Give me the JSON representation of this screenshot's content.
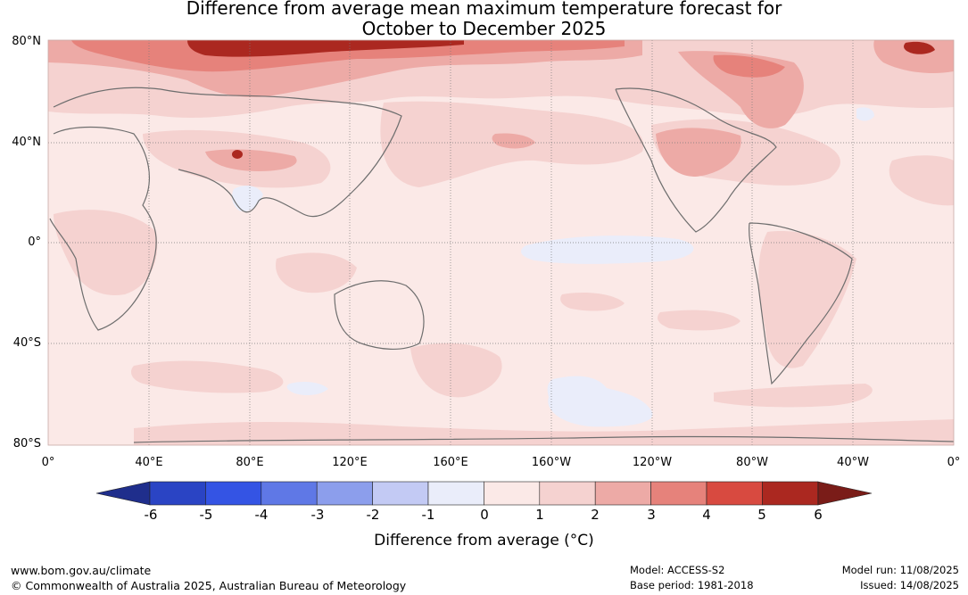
{
  "title": {
    "line1": "Difference from average mean maximum temperature forecast for",
    "line2": "October to December 2025"
  },
  "map": {
    "lat_labels": [
      "80°N",
      "40°N",
      "0°",
      "40°S",
      "80°S"
    ],
    "lon_labels": [
      "0°",
      "40°E",
      "80°E",
      "120°E",
      "160°E",
      "160°W",
      "120°W",
      "80°W",
      "40°W",
      "0°"
    ],
    "base_color": "#fbe9e7"
  },
  "colorbar": {
    "ticks": [
      "-6",
      "-5",
      "-4",
      "-3",
      "-2",
      "-1",
      "0",
      "1",
      "2",
      "3",
      "4",
      "5",
      "6"
    ],
    "colors": [
      "#1f2e8c",
      "#2a44c4",
      "#3454e4",
      "#5f78e6",
      "#8c9eec",
      "#c3caf4",
      "#eaedfa",
      "#fbe9e7",
      "#f5d2d0",
      "#edaaa6",
      "#e6827b",
      "#d84a40",
      "#ab2820",
      "#7a1c18"
    ],
    "label": "Difference from average (°C)"
  },
  "footer": {
    "website": "www.bom.gov.au/climate",
    "copyright": "© Commonwealth of Australia 2025, Australian Bureau of Meteorology",
    "model": "Model: ACCESS-S2",
    "base_period": "Base period: 1981-2018",
    "model_run": "Model run: 11/08/2025",
    "issued": "Issued: 14/08/2025"
  }
}
